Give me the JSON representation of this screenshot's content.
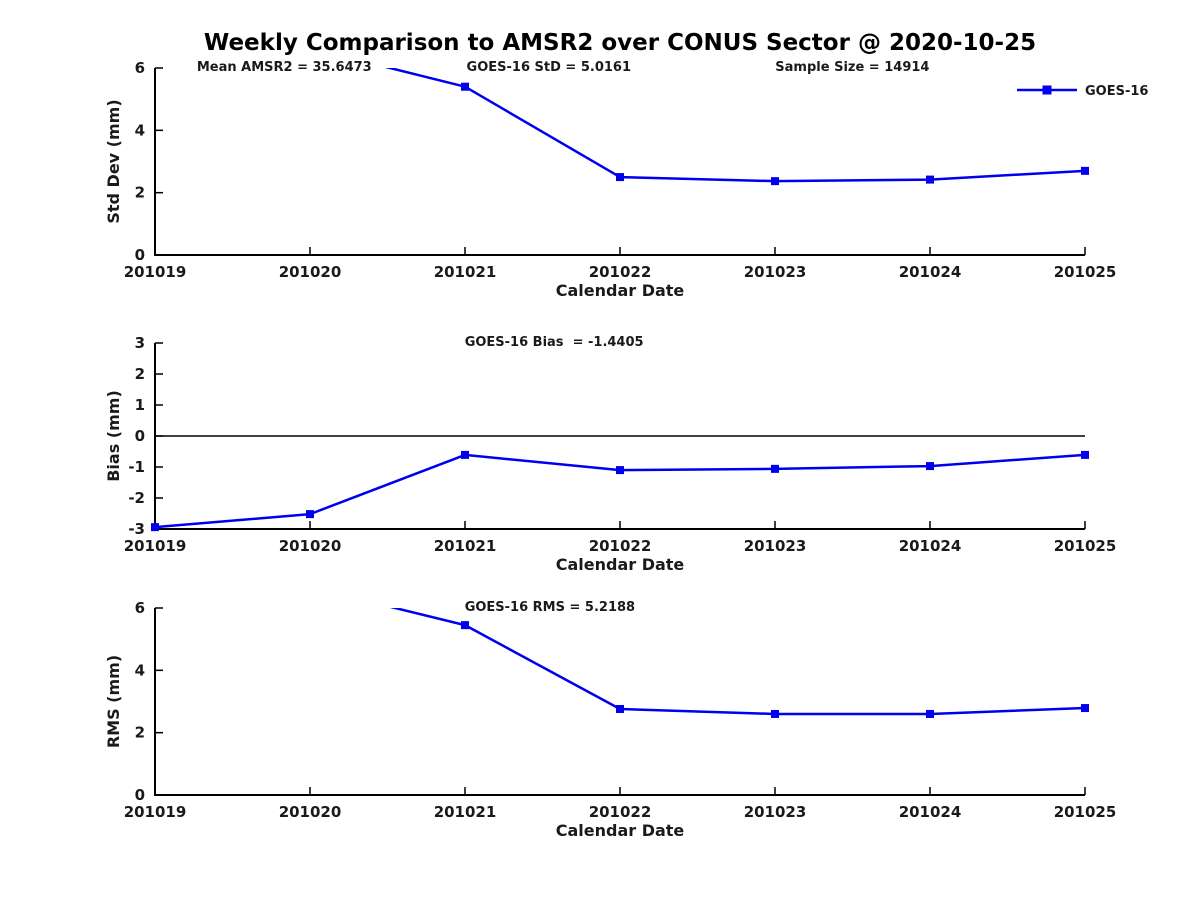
{
  "title": "Weekly Comparison to AMSR2 over CONUS Sector @ 2020-10-25",
  "colors": {
    "line": "#0000EE",
    "axis": "#000000",
    "text": "#1a1a1a",
    "background": "#ffffff"
  },
  "legend": {
    "label": "GOES-16",
    "position": "top-right"
  },
  "x_axis": {
    "label": "Calendar Date",
    "ticks": [
      "201019",
      "201020",
      "201021",
      "201022",
      "201023",
      "201024",
      "201025"
    ]
  },
  "chart_data": [
    {
      "type": "line",
      "ylabel": "Std Dev (mm)",
      "xlabel": "Calendar Date",
      "ylim": [
        0,
        6
      ],
      "yticks": [
        0,
        2,
        4,
        6
      ],
      "x": [
        201019,
        201020,
        201021,
        201022,
        201023,
        201024,
        201025
      ],
      "series": [
        {
          "name": "GOES-16",
          "values": [
            null,
            6.64,
            5.4,
            2.5,
            2.37,
            2.42,
            2.7
          ]
        }
      ],
      "annotations": [
        {
          "text": "Mean AMSR2 = 35.6473",
          "xfrac": 0.045
        },
        {
          "text": "GOES-16 StD = 5.0161",
          "xfrac": 0.335
        },
        {
          "text": "Sample Size = 14914",
          "xfrac": 0.667
        }
      ],
      "zero_line": false,
      "show_legend": true,
      "grid": false
    },
    {
      "type": "line",
      "ylabel": "Bias (mm)",
      "xlabel": "Calendar Date",
      "ylim": [
        -3,
        3
      ],
      "yticks": [
        3,
        2,
        1,
        0,
        -1,
        -2,
        -3
      ],
      "x": [
        201019,
        201020,
        201021,
        201022,
        201023,
        201024,
        201025
      ],
      "series": [
        {
          "name": "GOES-16",
          "values": [
            -2.94,
            -2.52,
            -0.61,
            -1.1,
            -1.06,
            -0.97,
            -0.61
          ]
        }
      ],
      "annotations": [
        {
          "text": "GOES-16 Bias  = -1.4405",
          "xfrac": 0.333
        }
      ],
      "zero_line": true,
      "show_legend": false,
      "grid": false
    },
    {
      "type": "line",
      "ylabel": "RMS (mm)",
      "xlabel": "Calendar Date",
      "ylim": [
        0,
        6
      ],
      "yticks": [
        0,
        2,
        4,
        6
      ],
      "x": [
        201019,
        201020,
        201021,
        201022,
        201023,
        201024,
        201025
      ],
      "series": [
        {
          "name": "GOES-16",
          "values": [
            null,
            6.67,
            5.45,
            2.76,
            2.6,
            2.6,
            2.79
          ]
        }
      ],
      "annotations": [
        {
          "text": "GOES-16 RMS = 5.2188",
          "xfrac": 0.333
        }
      ],
      "zero_line": false,
      "show_legend": false,
      "grid": false
    }
  ]
}
